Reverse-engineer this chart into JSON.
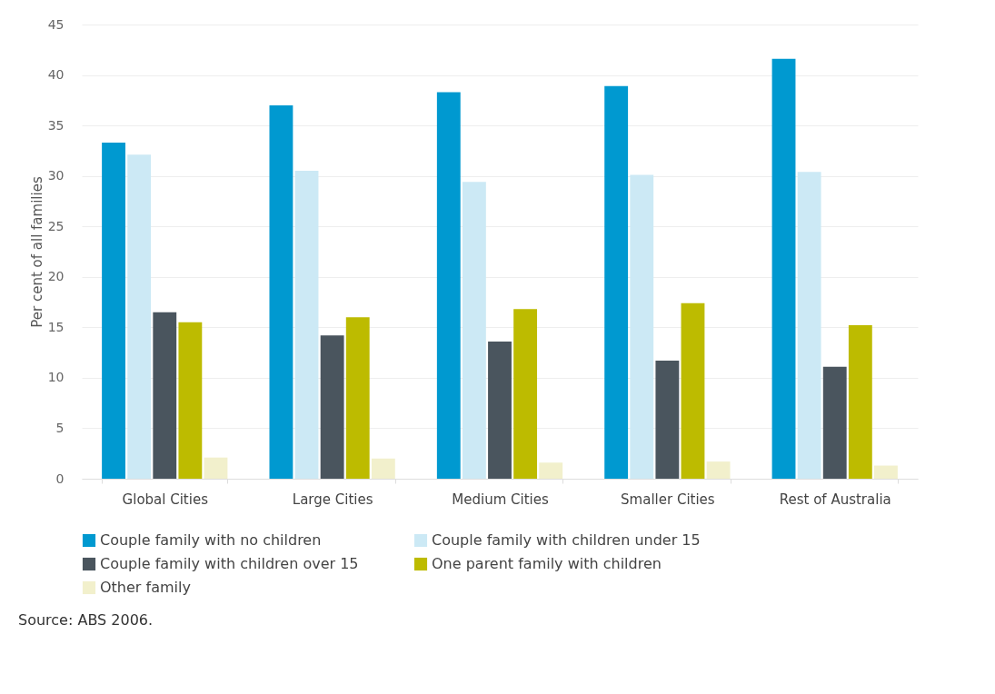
{
  "chart_data": {
    "type": "bar",
    "ylabel": "Per cent of all families",
    "categories": [
      "Global Cities",
      "Large Cities",
      "Medium Cities",
      "Smaller Cities",
      "Rest of Australia"
    ],
    "series": [
      {
        "name": "Couple family with no children",
        "color": "#0099d0",
        "values": [
          33.3,
          37.0,
          38.3,
          38.9,
          41.6
        ]
      },
      {
        "name": "Couple family with children under 15",
        "color": "#cce9f5",
        "values": [
          32.1,
          30.5,
          29.4,
          30.1,
          30.4
        ]
      },
      {
        "name": "Couple family with children over 15",
        "color": "#4a555e",
        "values": [
          16.5,
          14.2,
          13.6,
          11.7,
          11.1
        ]
      },
      {
        "name": "One parent family with children",
        "color": "#bdbb00",
        "values": [
          15.5,
          16.0,
          16.8,
          17.4,
          15.2
        ]
      },
      {
        "name": "Other family",
        "color": "#f2f0cc",
        "values": [
          2.1,
          2.0,
          1.6,
          1.7,
          1.3
        ]
      }
    ],
    "ylim": [
      0,
      45
    ],
    "yticks": [
      0,
      5,
      10,
      15,
      20,
      25,
      30,
      35,
      40,
      45
    ],
    "grid": "y",
    "legend": "bottom",
    "annotations": [
      "Source: ABS 2006."
    ]
  }
}
